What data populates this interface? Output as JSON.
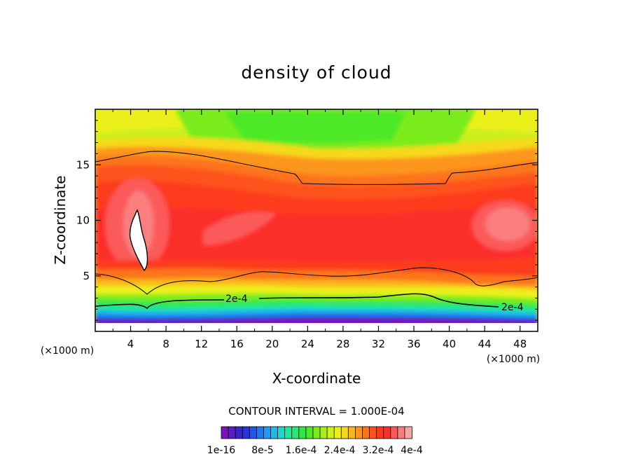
{
  "chart_data": {
    "type": "heatmap",
    "title": "density of cloud",
    "xlabel": "X-coordinate",
    "ylabel": "Z-coordinate",
    "x_unit": "(×1000 m)",
    "y_unit": "(×1000 m)",
    "xlim": [
      0,
      50
    ],
    "ylim": [
      0,
      20
    ],
    "x_ticks": [
      "4",
      "8",
      "12",
      "16",
      "20",
      "24",
      "28",
      "32",
      "36",
      "40",
      "44",
      "48"
    ],
    "y_ticks": [
      "5",
      "10",
      "15"
    ],
    "contour_interval_label": "CONTOUR INTERVAL = 1.000E-04",
    "contour_labels": [
      "2e-4",
      "2e-4"
    ],
    "colorbar": {
      "tick_labels": [
        "1e-16",
        "8e-5",
        "1.6e-4",
        "2.4e-4",
        "3.2e-4",
        "4e-4"
      ],
      "colors": [
        "#7a12b6",
        "#5a1cc0",
        "#3b24c8",
        "#2635d8",
        "#1e56e6",
        "#1f78f0",
        "#209af2",
        "#1fbbe8",
        "#20d8c8",
        "#22e6a0",
        "#26ea72",
        "#2ee84a",
        "#4ee828",
        "#7aec1e",
        "#a6ee1c",
        "#ccf01c",
        "#ecf01a",
        "#f7d81a",
        "#fbb81c",
        "#fc961c",
        "#fd741c",
        "#fe521c",
        "#fe3a1e",
        "#fc2f2c",
        "#fc5a5a",
        "#fb7e7e",
        "#f7a4a4"
      ]
    },
    "grid": false,
    "legend": "colorbar-bottom"
  }
}
